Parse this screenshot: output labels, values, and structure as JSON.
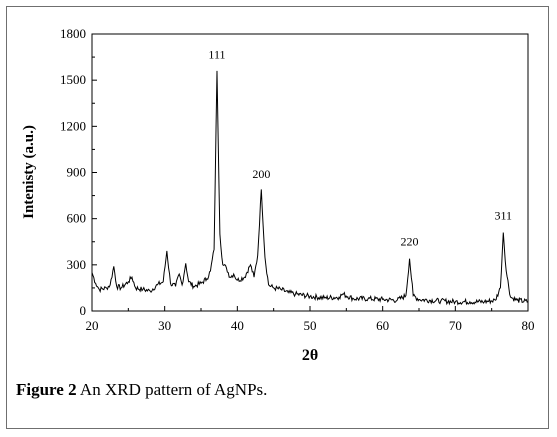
{
  "caption": {
    "label": "Figure 2",
    "text": " An XRD pattern of AgNPs."
  },
  "chart_data": {
    "type": "line",
    "title": "",
    "xlabel": "2θ",
    "ylabel": "Intenisty (a.u.)",
    "xlim": [
      20,
      80
    ],
    "ylim": [
      0,
      1800
    ],
    "xticks": [
      20,
      30,
      40,
      50,
      60,
      70,
      80
    ],
    "yticks": [
      0,
      300,
      600,
      900,
      1200,
      1500,
      1800
    ],
    "grid": false,
    "legend": "none",
    "line_color": "#000000",
    "annotations": [
      {
        "text": "111",
        "x": 37.2,
        "y": 1640
      },
      {
        "text": "200",
        "x": 43.3,
        "y": 865
      },
      {
        "text": "220",
        "x": 63.7,
        "y": 425
      },
      {
        "text": "311",
        "x": 76.6,
        "y": 595
      }
    ],
    "series": [
      {
        "x": [
          20,
          20.5,
          21,
          22,
          22.5,
          23,
          23.4,
          24,
          25,
          25.5,
          26,
          27,
          28,
          29,
          29.8,
          30.3,
          30.8,
          31.5,
          32,
          32.4,
          32.9,
          33.3,
          34,
          35,
          35.8,
          36.3,
          36.8,
          37.2,
          37.6,
          38,
          38.5,
          39,
          39.5,
          40,
          41,
          41.8,
          42.3,
          42.8,
          43.3,
          43.8,
          44.3,
          45,
          46,
          47,
          48,
          50,
          52,
          54,
          54.5,
          56,
          58,
          60,
          62,
          63.2,
          63.7,
          64.2,
          65,
          68,
          70,
          72,
          74,
          75.5,
          76.2,
          76.6,
          77,
          77.6,
          78.5,
          80
        ],
        "values": [
          250,
          180,
          140,
          150,
          170,
          290,
          160,
          150,
          190,
          220,
          150,
          140,
          130,
          170,
          190,
          390,
          180,
          160,
          240,
          170,
          310,
          190,
          160,
          180,
          210,
          260,
          400,
          1560,
          500,
          300,
          280,
          220,
          240,
          200,
          220,
          300,
          220,
          360,
          790,
          350,
          170,
          150,
          140,
          120,
          110,
          95,
          85,
          90,
          110,
          80,
          80,
          75,
          70,
          100,
          340,
          100,
          75,
          65,
          60,
          60,
          60,
          70,
          150,
          510,
          260,
          90,
          70,
          60
        ]
      }
    ]
  }
}
